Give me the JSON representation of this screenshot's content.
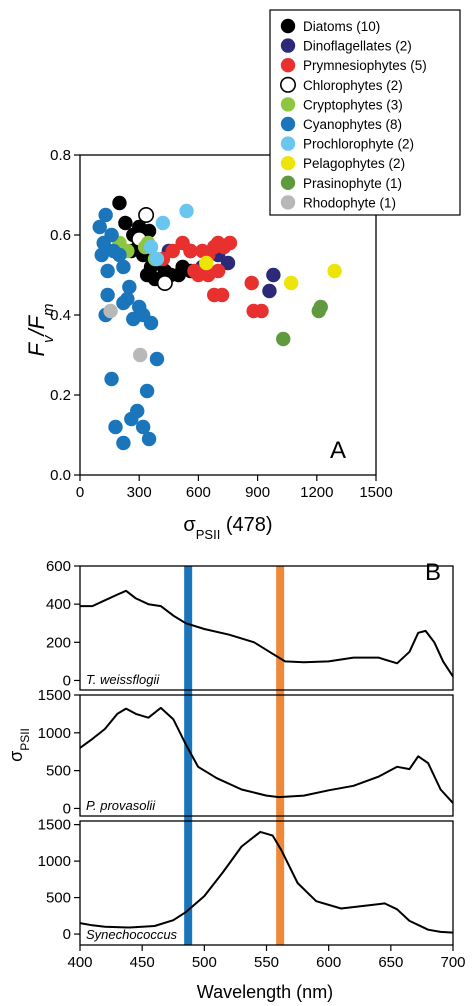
{
  "chart_data": [
    {
      "type": "scatter",
      "panel_label": "A",
      "ylabel_main": "F",
      "ylabel_sub1": "v",
      "ylabel_sep": "/F",
      "ylabel_sub2": "m",
      "xlabel_main": "σ",
      "xlabel_sub": "PSII",
      "xlabel_suffix": " (478)",
      "xlim": [
        0,
        1500
      ],
      "ylim": [
        0,
        0.8
      ],
      "xticks": [
        "0",
        "300",
        "600",
        "900",
        "1200",
        "1500"
      ],
      "yticks": [
        "0.0",
        "0.2",
        "0.4",
        "0.6",
        "0.8"
      ],
      "legend_position": "top-right",
      "series": [
        {
          "name": "Diatoms (10)",
          "color": "#000000",
          "filled": true,
          "points": [
            [
              200,
              0.68
            ],
            [
              230,
              0.63
            ],
            [
              270,
              0.6
            ],
            [
              300,
              0.62
            ],
            [
              330,
              0.6
            ],
            [
              350,
              0.61
            ],
            [
              320,
              0.55
            ],
            [
              340,
              0.5
            ],
            [
              360,
              0.52
            ],
            [
              380,
              0.49
            ],
            [
              400,
              0.53
            ],
            [
              430,
              0.51
            ],
            [
              460,
              0.5
            ],
            [
              500,
              0.5
            ],
            [
              520,
              0.52
            ],
            [
              560,
              0.51
            ],
            [
              260,
              0.56
            ],
            [
              300,
              0.58
            ]
          ]
        },
        {
          "name": "Dinoflagellates (2)",
          "color": "#2c2a78",
          "filled": true,
          "points": [
            [
              450,
              0.56
            ],
            [
              560,
              0.56
            ],
            [
              620,
              0.52
            ],
            [
              700,
              0.55
            ],
            [
              750,
              0.53
            ],
            [
              980,
              0.5
            ],
            [
              960,
              0.46
            ]
          ]
        },
        {
          "name": "Prymnesiophytes (5)",
          "color": "#e8312f",
          "filled": true,
          "points": [
            [
              420,
              0.54
            ],
            [
              470,
              0.56
            ],
            [
              520,
              0.58
            ],
            [
              560,
              0.56
            ],
            [
              580,
              0.51
            ],
            [
              620,
              0.56
            ],
            [
              650,
              0.55
            ],
            [
              680,
              0.57
            ],
            [
              700,
              0.58
            ],
            [
              730,
              0.57
            ],
            [
              760,
              0.58
            ],
            [
              650,
              0.5
            ],
            [
              700,
              0.51
            ],
            [
              680,
              0.45
            ],
            [
              720,
              0.45
            ],
            [
              870,
              0.48
            ],
            [
              880,
              0.41
            ],
            [
              920,
              0.41
            ],
            [
              600,
              0.5
            ]
          ]
        },
        {
          "name": "Chlorophytes (2)",
          "color": "#ffffff",
          "filled": false,
          "points": [
            [
              335,
              0.65
            ],
            [
              300,
              0.59
            ],
            [
              430,
              0.48
            ]
          ]
        },
        {
          "name": "Cryptophytes (3)",
          "color": "#8dc63f",
          "filled": true,
          "points": [
            [
              200,
              0.58
            ],
            [
              240,
              0.56
            ],
            [
              330,
              0.57
            ],
            [
              345,
              0.58
            ],
            [
              380,
              0.54
            ]
          ]
        },
        {
          "name": "Cyanophytes (8)",
          "color": "#1b75bb",
          "filled": true,
          "points": [
            [
              100,
              0.62
            ],
            [
              130,
              0.65
            ],
            [
              160,
              0.6
            ],
            [
              120,
              0.58
            ],
            [
              110,
              0.55
            ],
            [
              170,
              0.56
            ],
            [
              140,
              0.51
            ],
            [
              200,
              0.55
            ],
            [
              220,
              0.52
            ],
            [
              250,
              0.47
            ],
            [
              240,
              0.44
            ],
            [
              220,
              0.43
            ],
            [
              140,
              0.45
            ],
            [
              130,
              0.4
            ],
            [
              270,
              0.39
            ],
            [
              320,
              0.4
            ],
            [
              360,
              0.38
            ],
            [
              300,
              0.42
            ],
            [
              160,
              0.24
            ],
            [
              390,
              0.29
            ],
            [
              340,
              0.21
            ],
            [
              290,
              0.16
            ],
            [
              320,
              0.12
            ],
            [
              260,
              0.14
            ],
            [
              180,
              0.12
            ],
            [
              220,
              0.08
            ],
            [
              350,
              0.09
            ]
          ]
        },
        {
          "name": "Prochlorophyte (2)",
          "color": "#69c7ef",
          "filled": true,
          "points": [
            [
              420,
              0.63
            ],
            [
              540,
              0.66
            ],
            [
              360,
              0.57
            ],
            [
              390,
              0.54
            ]
          ]
        },
        {
          "name": "Pelagophytes (2)",
          "color": "#ede50a",
          "filled": true,
          "points": [
            [
              640,
              0.53
            ],
            [
              1070,
              0.48
            ],
            [
              1290,
              0.51
            ]
          ]
        },
        {
          "name": "Prasinophyte (1)",
          "color": "#5f9b3e",
          "filled": true,
          "points": [
            [
              1030,
              0.34
            ],
            [
              1210,
              0.41
            ],
            [
              1220,
              0.42
            ]
          ]
        },
        {
          "name": "Rhodophyte (1)",
          "color": "#b8b8b8",
          "filled": true,
          "points": [
            [
              155,
              0.41
            ],
            [
              305,
              0.3
            ]
          ]
        }
      ]
    },
    {
      "type": "line",
      "panel_label": "B",
      "xlabel": "Wavelength (nm)",
      "ylabel_main": "σ",
      "ylabel_sub": "PSII",
      "xlim": [
        400,
        700
      ],
      "xticks": [
        "400",
        "450",
        "500",
        "550",
        "600",
        "650",
        "700"
      ],
      "highlight_bands": [
        {
          "wavelength": 487,
          "color": "#1b75bb"
        },
        {
          "wavelength": 561,
          "color": "#f0883a"
        }
      ],
      "subpanels": [
        {
          "name": "T. weissflogii",
          "ylim": [
            -50,
            600
          ],
          "yticks": [
            "0",
            "200",
            "400",
            "600"
          ],
          "x": [
            400,
            410,
            420,
            430,
            437,
            445,
            455,
            465,
            475,
            485,
            500,
            520,
            540,
            555,
            565,
            580,
            600,
            620,
            640,
            655,
            665,
            672,
            678,
            685,
            692,
            700
          ],
          "y": [
            390,
            390,
            420,
            450,
            470,
            430,
            400,
            390,
            340,
            300,
            270,
            240,
            200,
            140,
            100,
            95,
            100,
            120,
            120,
            90,
            150,
            250,
            260,
            200,
            100,
            20
          ]
        },
        {
          "name": "P. provasolii",
          "ylim": [
            -100,
            1500
          ],
          "yticks": [
            "0",
            "500",
            "1000",
            "1500"
          ],
          "x": [
            400,
            410,
            420,
            430,
            437,
            445,
            455,
            465,
            475,
            485,
            495,
            510,
            530,
            550,
            560,
            580,
            600,
            620,
            640,
            655,
            665,
            672,
            680,
            690,
            700
          ],
          "y": [
            800,
            920,
            1050,
            1250,
            1320,
            1250,
            1200,
            1330,
            1180,
            850,
            550,
            400,
            250,
            170,
            150,
            170,
            240,
            300,
            420,
            550,
            520,
            690,
            600,
            250,
            70
          ]
        },
        {
          "name": "Synechococcus",
          "ylim": [
            -150,
            1550
          ],
          "yticks": [
            "0",
            "500",
            "1000",
            "1500"
          ],
          "x": [
            400,
            410,
            420,
            440,
            460,
            475,
            485,
            500,
            515,
            530,
            545,
            555,
            562,
            575,
            590,
            610,
            630,
            645,
            655,
            665,
            680,
            690,
            700
          ],
          "y": [
            150,
            120,
            100,
            90,
            110,
            190,
            300,
            520,
            850,
            1200,
            1400,
            1350,
            1150,
            700,
            450,
            350,
            390,
            420,
            340,
            180,
            60,
            30,
            20
          ]
        }
      ]
    }
  ]
}
